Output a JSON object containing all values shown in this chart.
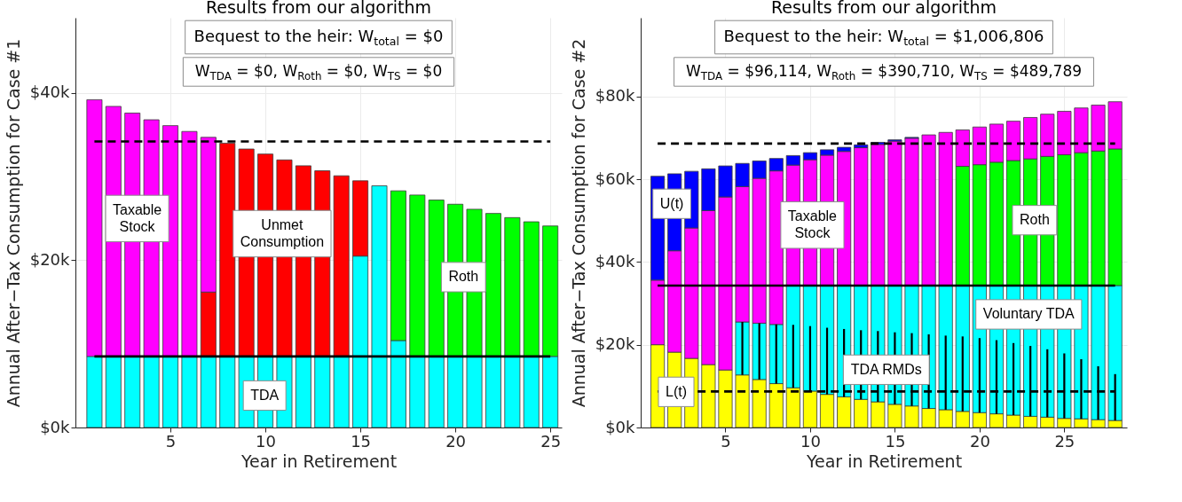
{
  "chart_data": [
    {
      "type": "bar",
      "stacked": true,
      "title": "Results from our algorithm",
      "subtitle": "Bequest to the heir:  W$_{total}$ = $0",
      "xlabel": "Year in Retirement",
      "ylabel": "Annual After−Tax Consumption for Case #1",
      "grid": true,
      "x": [
        1,
        2,
        3,
        4,
        5,
        6,
        7,
        8,
        9,
        10,
        11,
        12,
        13,
        14,
        15,
        16,
        17,
        18,
        19,
        20,
        21,
        22,
        23,
        24,
        25
      ],
      "xlim": [
        0,
        25.6
      ],
      "xticks": [
        5,
        10,
        15,
        20,
        25
      ],
      "ylim": [
        0,
        49
      ],
      "yticks": [
        {
          "value": 0,
          "label": "$0k"
        },
        {
          "value": 20,
          "label": "$20k"
        },
        {
          "value": 40,
          "label": "$40k"
        }
      ],
      "series": [
        {
          "color": "#00ffff",
          "values": [
            8.5,
            8.5,
            8.5,
            8.5,
            8.5,
            8.5,
            8.5,
            8.5,
            8.5,
            8.5,
            8.5,
            8.5,
            8.5,
            8.5,
            20.5,
            28.9,
            10.4,
            8.5,
            8.5,
            8.5,
            8.5,
            8.5,
            8.5,
            8.5,
            8.5
          ]
        },
        {
          "color": "#ff0000",
          "values": [
            null,
            null,
            null,
            null,
            null,
            null,
            7.7,
            25.5,
            24.8,
            24.2,
            23.5,
            22.8,
            22.2,
            21.6,
            9.0,
            null,
            null,
            null,
            null,
            null,
            null,
            null,
            null,
            null,
            null
          ]
        },
        {
          "color": "#ff00ff",
          "values": [
            30.7,
            29.9,
            29.1,
            28.3,
            27.6,
            26.9,
            18.5,
            null,
            null,
            null,
            null,
            null,
            null,
            null,
            null,
            null,
            null,
            null,
            null,
            null,
            null,
            null,
            null,
            null,
            null
          ]
        },
        {
          "color": "#00ff00",
          "values": [
            null,
            null,
            null,
            null,
            null,
            null,
            null,
            null,
            null,
            null,
            null,
            null,
            null,
            null,
            null,
            null,
            17.9,
            19.3,
            18.7,
            18.2,
            17.6,
            17.1,
            16.6,
            16.1,
            15.6
          ]
        }
      ],
      "ref_lines": [
        {
          "axis": "y",
          "value": 34.2,
          "color": "#000000",
          "line_style": "dashed"
        },
        {
          "axis": "y",
          "value": 8.5,
          "color": "#000000",
          "line_style": "solid"
        }
      ],
      "annotations": [
        "W$_{TDA}$ = $0,  W$_{Roth}$ = $0,  W$_{TS}$ = $0",
        "Taxable\nStock",
        "Unmet\nConsumption",
        "Roth",
        "TDA"
      ]
    },
    {
      "type": "bar",
      "stacked": true,
      "title": "Results from our algorithm",
      "subtitle": "Bequest to the heir:  W$_{total}$ = $1,006,806",
      "xlabel": "Year in Retirement",
      "ylabel": "Annual After−Tax Consumption for Case #2",
      "grid": true,
      "x": [
        1,
        2,
        3,
        4,
        5,
        6,
        7,
        8,
        9,
        10,
        11,
        12,
        13,
        14,
        15,
        16,
        17,
        18,
        19,
        20,
        21,
        22,
        23,
        24,
        25,
        26,
        27,
        28
      ],
      "xlim": [
        0,
        28.7
      ],
      "xticks": [
        5,
        10,
        15,
        20,
        25
      ],
      "ylim": [
        0,
        99
      ],
      "yticks": [
        {
          "value": 0,
          "label": "$0k"
        },
        {
          "value": 20,
          "label": "$20k"
        },
        {
          "value": 40,
          "label": "$40k"
        },
        {
          "value": 60,
          "label": "$60k"
        },
        {
          "value": 80,
          "label": "$80k"
        }
      ],
      "series": [
        {
          "color": "#ffff00",
          "values": [
            20.0,
            18.2,
            16.7,
            15.2,
            13.9,
            12.7,
            11.6,
            10.6,
            9.6,
            8.8,
            8.0,
            7.4,
            6.8,
            6.2,
            5.6,
            5.2,
            4.6,
            4.3,
            3.9,
            3.6,
            3.3,
            3.0,
            2.7,
            2.5,
            2.2,
            2.1,
            1.9,
            1.7
          ],
          "errors": [
            null,
            null,
            null,
            null,
            null,
            [
              12.7,
              25.5
            ],
            [
              11.6,
              25.2
            ],
            [
              10.6,
              24.9
            ],
            [
              9.6,
              24.8
            ],
            [
              8.8,
              24.5
            ],
            [
              8.0,
              24.1
            ],
            [
              7.4,
              23.8
            ],
            [
              6.8,
              23.5
            ],
            [
              6.2,
              23.3
            ],
            [
              5.6,
              23.0
            ],
            [
              5.2,
              22.8
            ],
            [
              4.6,
              22.5
            ],
            [
              4.3,
              22.2
            ],
            [
              3.9,
              22.0
            ],
            [
              3.6,
              21.6
            ],
            [
              3.3,
              21.1
            ],
            [
              3.0,
              20.4
            ],
            [
              2.7,
              19.7
            ],
            [
              2.5,
              18.9
            ],
            [
              2.2,
              17.9
            ],
            [
              2.1,
              16.5
            ],
            [
              1.9,
              14.8
            ],
            [
              1.7,
              12.9
            ]
          ]
        },
        {
          "color": "#00ffff",
          "values": [
            null,
            null,
            null,
            null,
            null,
            12.8,
            13.6,
            14.3,
            24.7,
            25.5,
            26.3,
            26.9,
            27.5,
            28.1,
            28.7,
            29.1,
            29.7,
            30.0,
            30.4,
            30.7,
            31.0,
            31.3,
            31.6,
            31.8,
            32.1,
            32.2,
            32.4,
            32.6
          ]
        },
        {
          "color": "#00ff00",
          "values": [
            null,
            null,
            null,
            null,
            null,
            null,
            null,
            null,
            null,
            null,
            null,
            null,
            null,
            null,
            null,
            null,
            null,
            null,
            28.8,
            29.2,
            29.8,
            30.2,
            30.6,
            31.2,
            31.6,
            32.1,
            32.5,
            33.0
          ]
        },
        {
          "color": "#ff00ff",
          "values": [
            15.6,
            24.5,
            31.5,
            37.2,
            41.8,
            32.7,
            35.0,
            37.1,
            29.1,
            30.4,
            31.5,
            32.4,
            33.3,
            34.1,
            34.9,
            35.6,
            36.4,
            37.0,
            8.8,
            9.1,
            9.2,
            9.5,
            10.0,
            10.2,
            10.5,
            10.8,
            11.1,
            11.4
          ]
        },
        {
          "color": "#0000ff",
          "values": [
            25.1,
            18.6,
            13.7,
            10.1,
            7.5,
            5.6,
            4.2,
            3.0,
            2.3,
            1.7,
            1.3,
            1.0,
            0.7,
            0.5,
            0.3,
            0.2,
            null,
            null,
            null,
            null,
            null,
            null,
            null,
            null,
            null,
            null,
            null,
            null
          ]
        }
      ],
      "ref_lines": [
        {
          "axis": "y",
          "value": 68.6,
          "color": "#000000",
          "line_style": "dashed"
        },
        {
          "axis": "y",
          "value": 34.3,
          "color": "#000000",
          "line_style": "solid"
        },
        {
          "axis": "y",
          "value": 8.7,
          "color": "#000000",
          "line_style": "dashed"
        }
      ],
      "annotations": [
        "W$_{TDA}$ = $96,114,  W$_{Roth}$ = $390,710,  W$_{TS}$ = $489,789",
        "U(t)",
        "Taxable\nStock",
        "Roth",
        "Voluntary TDA",
        "TDA RMDs",
        "L(t)"
      ]
    }
  ]
}
